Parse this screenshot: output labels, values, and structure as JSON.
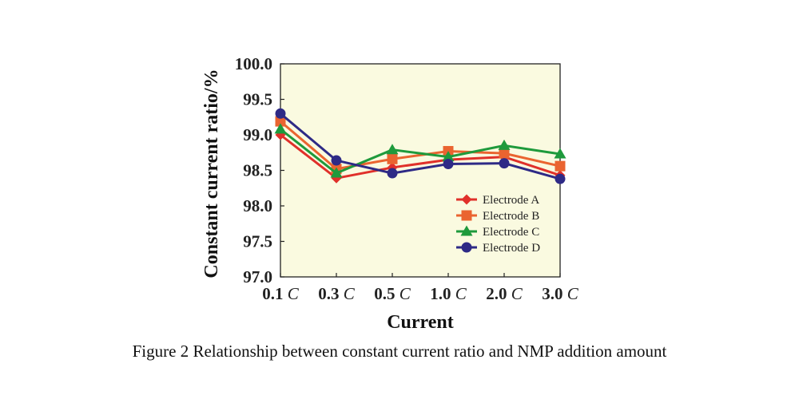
{
  "caption": "Figure 2 Relationship between constant current ratio and NMP addition amount",
  "chart_data": {
    "type": "line",
    "title": "",
    "xlabel": "Current",
    "ylabel": "Constant current ratio/%",
    "categories": [
      "0.1 C",
      "0.3 C",
      "0.5 C",
      "1.0 C",
      "2.0 C",
      "3.0 C"
    ],
    "ylim": [
      97.0,
      100.0
    ],
    "yticks": [
      "97.0",
      "97.5",
      "98.0",
      "98.5",
      "99.0",
      "99.5",
      "100.0"
    ],
    "grid": false,
    "legend_position": "bottom-right",
    "plot_background": "#fafae0",
    "series": [
      {
        "name": "Electrode A",
        "color": "#e0302a",
        "marker": "diamond",
        "values": [
          99.0,
          98.39,
          98.54,
          98.65,
          98.69,
          98.43
        ]
      },
      {
        "name": "Electrode B",
        "color": "#ea6430",
        "marker": "square",
        "values": [
          99.19,
          98.52,
          98.66,
          98.77,
          98.74,
          98.56
        ]
      },
      {
        "name": "Electrode C",
        "color": "#1e9a3c",
        "marker": "triangle",
        "values": [
          99.08,
          98.46,
          98.79,
          98.69,
          98.85,
          98.73
        ]
      },
      {
        "name": "Electrode D",
        "color": "#2e2a86",
        "marker": "circle",
        "values": [
          99.3,
          98.64,
          98.46,
          98.59,
          98.6,
          98.38
        ]
      }
    ]
  }
}
